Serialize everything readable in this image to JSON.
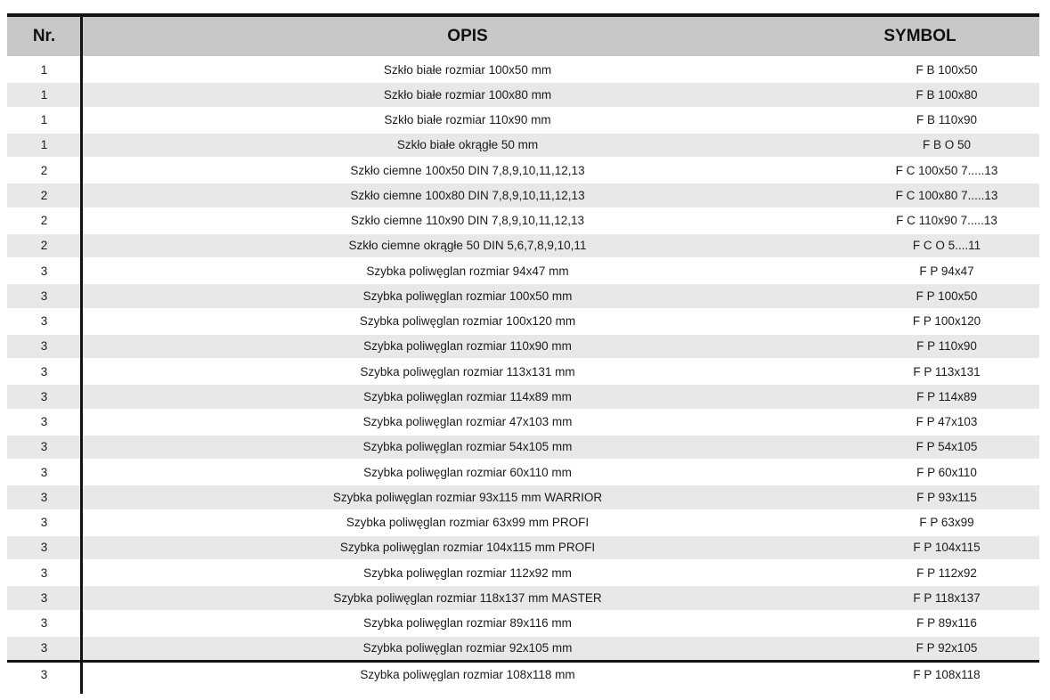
{
  "colors": {
    "header_bg": "#c8c8c8",
    "row_stripe_bg": "#e8e8e8",
    "rule": "#141414"
  },
  "table": {
    "columns": [
      "Nr.",
      "OPIS",
      "SYMBOL"
    ],
    "rows": [
      {
        "nr": "1",
        "opis": "Szkło białe rozmiar 100x50 mm",
        "symbol": "F B 100x50"
      },
      {
        "nr": "1",
        "opis": "Szkło białe rozmiar 100x80 mm",
        "symbol": "F B 100x80"
      },
      {
        "nr": "1",
        "opis": "Szkło białe rozmiar 110x90 mm",
        "symbol": "F B 110x90"
      },
      {
        "nr": "1",
        "opis": "Szkło białe okrągłe 50 mm",
        "symbol": "F B O 50"
      },
      {
        "nr": "2",
        "opis": "Szkło ciemne 100x50 DIN 7,8,9,10,11,12,13",
        "symbol": "F C 100x50 7.....13"
      },
      {
        "nr": "2",
        "opis": "Szkło ciemne 100x80 DIN 7,8,9,10,11,12,13",
        "symbol": "F C 100x80 7.....13"
      },
      {
        "nr": "2",
        "opis": "Szkło ciemne 110x90 DIN 7,8,9,10,11,12,13",
        "symbol": "F C 110x90 7.....13"
      },
      {
        "nr": "2",
        "opis": "Szkło ciemne okrągłe 50 DIN 5,6,7,8,9,10,11",
        "symbol": "F C O 5....11"
      },
      {
        "nr": "3",
        "opis": "Szybka poliwęglan rozmiar 94x47 mm",
        "symbol": "F P 94x47"
      },
      {
        "nr": "3",
        "opis": "Szybka poliwęglan rozmiar 100x50 mm",
        "symbol": "F P 100x50"
      },
      {
        "nr": "3",
        "opis": "Szybka poliwęglan rozmiar 100x120 mm",
        "symbol": "F P 100x120"
      },
      {
        "nr": "3",
        "opis": "Szybka poliwęglan rozmiar 110x90 mm",
        "symbol": "F P 110x90"
      },
      {
        "nr": "3",
        "opis": "Szybka poliwęglan rozmiar 113x131 mm",
        "symbol": "F P 113x131"
      },
      {
        "nr": "3",
        "opis": "Szybka poliwęglan rozmiar 114x89 mm",
        "symbol": "F P 114x89"
      },
      {
        "nr": "3",
        "opis": "Szybka poliwęglan rozmiar 47x103 mm",
        "symbol": "F P 47x103"
      },
      {
        "nr": "3",
        "opis": "Szybka poliwęglan rozmiar 54x105 mm",
        "symbol": "F P 54x105"
      },
      {
        "nr": "3",
        "opis": "Szybka poliwęglan rozmiar 60x110 mm",
        "symbol": "F P 60x110"
      },
      {
        "nr": "3",
        "opis": "Szybka poliwęglan rozmiar 93x115 mm WARRIOR",
        "symbol": "F P 93x115"
      },
      {
        "nr": "3",
        "opis": "Szybka poliwęglan rozmiar 63x99 mm PROFI",
        "symbol": "F P 63x99"
      },
      {
        "nr": "3",
        "opis": "Szybka poliwęglan rozmiar 104x115 mm PROFI",
        "symbol": "F P 104x115"
      },
      {
        "nr": "3",
        "opis": "Szybka poliwęglan rozmiar 112x92 mm",
        "symbol": "F P 112x92"
      },
      {
        "nr": "3",
        "opis": "Szybka poliwęglan rozmiar 118x137 mm MASTER",
        "symbol": "F P 118x137"
      },
      {
        "nr": "3",
        "opis": "Szybka poliwęglan rozmiar 89x116 mm",
        "symbol": "F P 89x116"
      },
      {
        "nr": "3",
        "opis": "Szybka poliwęglan rozmiar 92x105 mm",
        "symbol": "F P 92x105"
      },
      {
        "nr": "3",
        "opis": "Szybka poliwęglan rozmiar 108x118 mm",
        "symbol": "F P 108x118"
      }
    ]
  }
}
